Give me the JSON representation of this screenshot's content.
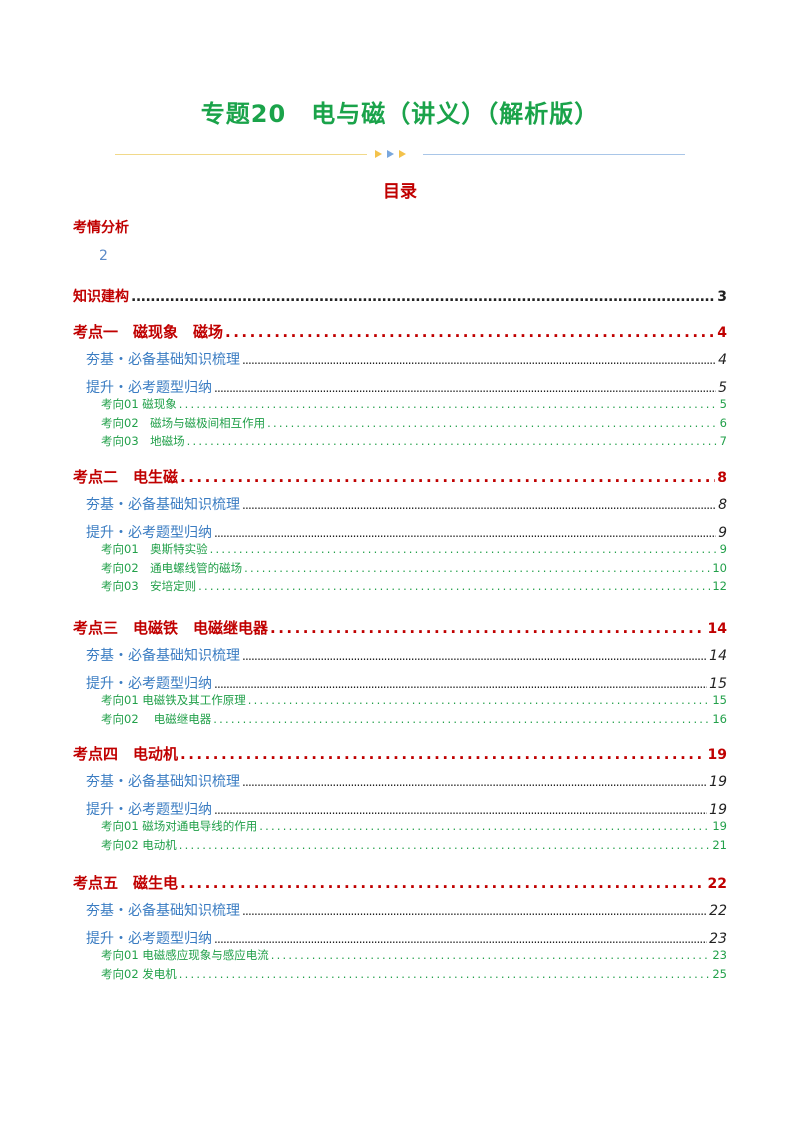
{
  "title": "专题20　电与磁（讲义）（解析版）",
  "toc_heading": "目录",
  "analysis": {
    "label": "考情分析",
    "page": "2"
  },
  "knowledge": {
    "label": "知识建构",
    "page": "3"
  },
  "sections": [
    {
      "label": "考点一　磁现象　磁场",
      "page": "4",
      "basics": {
        "label": "夯基・必备基础知识梳理",
        "page": "4"
      },
      "improve": {
        "label": "提升・必考题型归纳",
        "page": "5"
      },
      "items": [
        {
          "label": "考向01 磁现象",
          "page": "5"
        },
        {
          "label": "考向02　磁场与磁极间相互作用",
          "page": "6"
        },
        {
          "label": "考向03　地磁场",
          "page": "7"
        }
      ]
    },
    {
      "label": "考点二　电生磁",
      "page": "8",
      "basics": {
        "label": "夯基・必备基础知识梳理",
        "page": "8"
      },
      "improve": {
        "label": "提升・必考题型归纳",
        "page": "9"
      },
      "items": [
        {
          "label": "考向01　奥斯特实验",
          "page": "9"
        },
        {
          "label": "考向02　通电螺线管的磁场",
          "page": "10"
        },
        {
          "label": "考向03　安培定则",
          "page": "12"
        }
      ]
    },
    {
      "label": "考点三　电磁铁　电磁继电器",
      "page": "14",
      "basics": {
        "label": "夯基・必备基础知识梳理",
        "page": "14"
      },
      "improve": {
        "label": "提升・必考题型归纳",
        "page": "15"
      },
      "items": [
        {
          "label": "考向01 电磁铁及其工作原理",
          "page": "15"
        },
        {
          "label": "考向02　 电磁继电器",
          "page": "16"
        }
      ]
    },
    {
      "label": "考点四　电动机",
      "page": "19",
      "basics": {
        "label": "夯基・必备基础知识梳理",
        "page": "19"
      },
      "improve": {
        "label": "提升・必考题型归纳",
        "page": "19"
      },
      "items": [
        {
          "label": "考向01 磁场对通电导线的作用",
          "page": "19"
        },
        {
          "label": "考向02 电动机",
          "page": "21"
        }
      ]
    },
    {
      "label": "考点五　磁生电",
      "page": "22",
      "basics": {
        "label": "夯基・必备基础知识梳理",
        "page": "22"
      },
      "improve": {
        "label": "提升・必考题型归纳",
        "page": "23"
      },
      "items": [
        {
          "label": "考向01 电磁感应现象与感应电流",
          "page": "23"
        },
        {
          "label": "考向02 发电机",
          "page": "25"
        }
      ]
    }
  ],
  "colors": {
    "title": "#1aa34a",
    "heading": "#c00000",
    "level2": "#3a7cc2",
    "level3": "#22a04a"
  }
}
